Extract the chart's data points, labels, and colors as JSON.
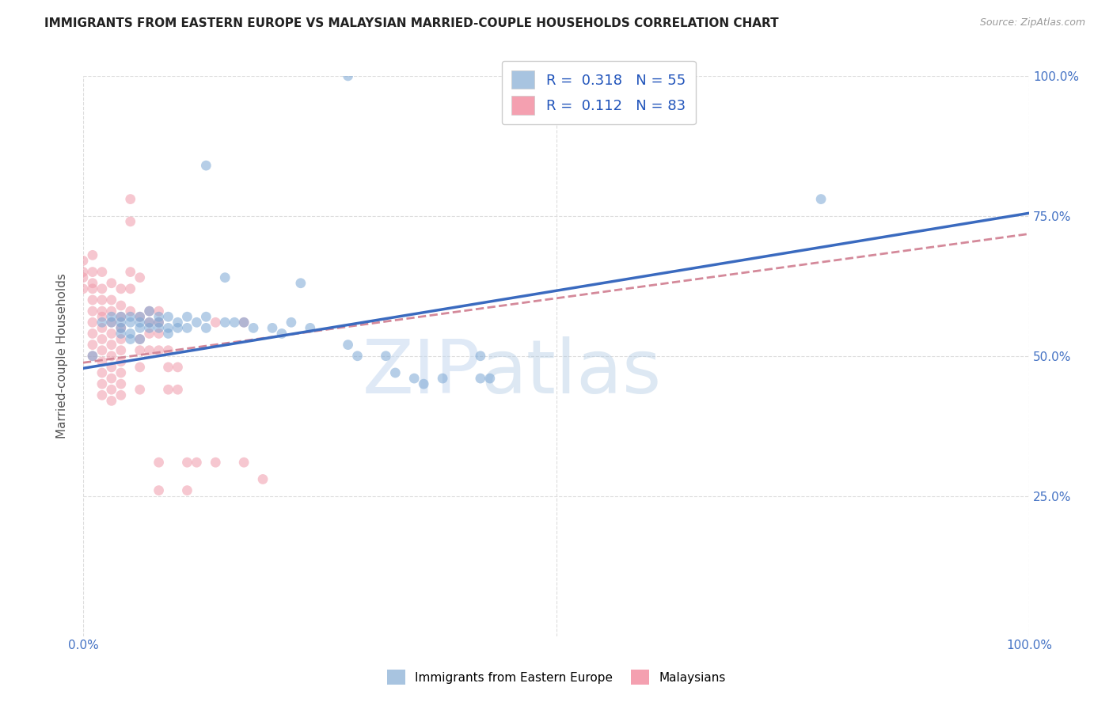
{
  "title": "IMMIGRANTS FROM EASTERN EUROPE VS MALAYSIAN MARRIED-COUPLE HOUSEHOLDS CORRELATION CHART",
  "source": "Source: ZipAtlas.com",
  "ylabel": "Married-couple Households",
  "background_color": "#ffffff",
  "grid_color": "#dddddd",
  "blue_scatter": [
    [
      0.28,
      1.0
    ],
    [
      0.13,
      0.84
    ],
    [
      0.02,
      0.56
    ],
    [
      0.03,
      0.57
    ],
    [
      0.03,
      0.56
    ],
    [
      0.04,
      0.57
    ],
    [
      0.04,
      0.56
    ],
    [
      0.04,
      0.55
    ],
    [
      0.04,
      0.54
    ],
    [
      0.05,
      0.57
    ],
    [
      0.05,
      0.56
    ],
    [
      0.05,
      0.54
    ],
    [
      0.05,
      0.53
    ],
    [
      0.06,
      0.57
    ],
    [
      0.06,
      0.56
    ],
    [
      0.06,
      0.55
    ],
    [
      0.06,
      0.53
    ],
    [
      0.07,
      0.58
    ],
    [
      0.07,
      0.56
    ],
    [
      0.07,
      0.55
    ],
    [
      0.08,
      0.57
    ],
    [
      0.08,
      0.56
    ],
    [
      0.08,
      0.55
    ],
    [
      0.09,
      0.57
    ],
    [
      0.09,
      0.55
    ],
    [
      0.09,
      0.54
    ],
    [
      0.1,
      0.56
    ],
    [
      0.1,
      0.55
    ],
    [
      0.11,
      0.57
    ],
    [
      0.11,
      0.55
    ],
    [
      0.12,
      0.56
    ],
    [
      0.13,
      0.57
    ],
    [
      0.13,
      0.55
    ],
    [
      0.15,
      0.64
    ],
    [
      0.15,
      0.56
    ],
    [
      0.16,
      0.56
    ],
    [
      0.17,
      0.56
    ],
    [
      0.18,
      0.55
    ],
    [
      0.2,
      0.55
    ],
    [
      0.21,
      0.54
    ],
    [
      0.22,
      0.56
    ],
    [
      0.23,
      0.63
    ],
    [
      0.24,
      0.55
    ],
    [
      0.28,
      0.52
    ],
    [
      0.29,
      0.5
    ],
    [
      0.32,
      0.5
    ],
    [
      0.33,
      0.47
    ],
    [
      0.35,
      0.46
    ],
    [
      0.36,
      0.45
    ],
    [
      0.38,
      0.46
    ],
    [
      0.42,
      0.46
    ],
    [
      0.42,
      0.5
    ],
    [
      0.43,
      0.46
    ],
    [
      0.78,
      0.78
    ],
    [
      0.01,
      0.5
    ]
  ],
  "pink_scatter": [
    [
      0.0,
      0.67
    ],
    [
      0.0,
      0.65
    ],
    [
      0.0,
      0.64
    ],
    [
      0.0,
      0.62
    ],
    [
      0.01,
      0.68
    ],
    [
      0.01,
      0.65
    ],
    [
      0.01,
      0.63
    ],
    [
      0.01,
      0.62
    ],
    [
      0.01,
      0.6
    ],
    [
      0.01,
      0.58
    ],
    [
      0.01,
      0.56
    ],
    [
      0.01,
      0.54
    ],
    [
      0.01,
      0.52
    ],
    [
      0.01,
      0.5
    ],
    [
      0.02,
      0.65
    ],
    [
      0.02,
      0.62
    ],
    [
      0.02,
      0.6
    ],
    [
      0.02,
      0.58
    ],
    [
      0.02,
      0.57
    ],
    [
      0.02,
      0.55
    ],
    [
      0.02,
      0.53
    ],
    [
      0.02,
      0.51
    ],
    [
      0.02,
      0.49
    ],
    [
      0.02,
      0.47
    ],
    [
      0.02,
      0.45
    ],
    [
      0.02,
      0.43
    ],
    [
      0.03,
      0.63
    ],
    [
      0.03,
      0.6
    ],
    [
      0.03,
      0.58
    ],
    [
      0.03,
      0.56
    ],
    [
      0.03,
      0.54
    ],
    [
      0.03,
      0.52
    ],
    [
      0.03,
      0.5
    ],
    [
      0.03,
      0.48
    ],
    [
      0.03,
      0.46
    ],
    [
      0.03,
      0.44
    ],
    [
      0.03,
      0.42
    ],
    [
      0.04,
      0.62
    ],
    [
      0.04,
      0.59
    ],
    [
      0.04,
      0.57
    ],
    [
      0.04,
      0.55
    ],
    [
      0.04,
      0.53
    ],
    [
      0.04,
      0.51
    ],
    [
      0.04,
      0.49
    ],
    [
      0.04,
      0.47
    ],
    [
      0.04,
      0.45
    ],
    [
      0.04,
      0.43
    ],
    [
      0.05,
      0.78
    ],
    [
      0.05,
      0.74
    ],
    [
      0.05,
      0.65
    ],
    [
      0.05,
      0.62
    ],
    [
      0.05,
      0.58
    ],
    [
      0.06,
      0.64
    ],
    [
      0.06,
      0.57
    ],
    [
      0.06,
      0.53
    ],
    [
      0.06,
      0.51
    ],
    [
      0.06,
      0.48
    ],
    [
      0.06,
      0.44
    ],
    [
      0.07,
      0.58
    ],
    [
      0.07,
      0.54
    ],
    [
      0.07,
      0.51
    ],
    [
      0.08,
      0.58
    ],
    [
      0.08,
      0.54
    ],
    [
      0.08,
      0.51
    ],
    [
      0.08,
      0.31
    ],
    [
      0.08,
      0.26
    ],
    [
      0.09,
      0.51
    ],
    [
      0.09,
      0.48
    ],
    [
      0.09,
      0.44
    ],
    [
      0.1,
      0.48
    ],
    [
      0.1,
      0.44
    ],
    [
      0.11,
      0.31
    ],
    [
      0.11,
      0.26
    ],
    [
      0.12,
      0.31
    ],
    [
      0.14,
      0.56
    ],
    [
      0.14,
      0.31
    ],
    [
      0.17,
      0.56
    ],
    [
      0.17,
      0.31
    ],
    [
      0.19,
      0.28
    ],
    [
      0.07,
      0.56
    ],
    [
      0.08,
      0.56
    ]
  ],
  "blue_line_x0": 0.0,
  "blue_line_y0": 0.478,
  "blue_line_x1": 1.0,
  "blue_line_y1": 0.755,
  "pink_line_x0": 0.0,
  "pink_line_y0": 0.488,
  "pink_line_x1": 1.0,
  "pink_line_y1": 0.718,
  "blue_dot_color": "#7ba7d4",
  "pink_dot_color": "#f09aaa",
  "blue_line_color": "#3a6abf",
  "pink_line_color": "#d4899a",
  "scatter_alpha": 0.55,
  "scatter_size": 85,
  "xlim": [
    0,
    1
  ],
  "ylim": [
    0,
    1
  ]
}
